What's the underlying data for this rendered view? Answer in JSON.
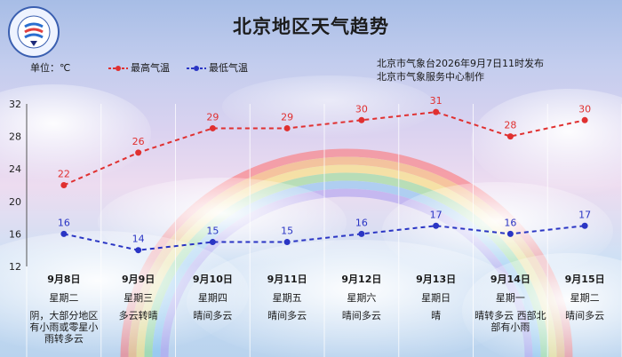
{
  "title": "北京地区天气趋势",
  "unit_label": "单位：℃",
  "legend": {
    "high": "最高气温",
    "low": "最低气温"
  },
  "source_lines": [
    "北京市气象台2026年9月7日11时发布",
    "北京市气象服务中心制作"
  ],
  "colors": {
    "high": "#e03030",
    "low": "#2a35c4"
  },
  "logo_icon": "beijing-meteorological-logo",
  "chart_data": {
    "type": "line",
    "title": "北京地区天气趋势",
    "ylim": [
      12,
      32
    ],
    "yticks": [
      12,
      16,
      20,
      24,
      28,
      32
    ],
    "grid": true,
    "categories": [
      "9月8日",
      "9月9日",
      "9月10日",
      "9月11日",
      "9月12日",
      "9月13日",
      "9月14日",
      "9月15日"
    ],
    "series": [
      {
        "name": "最高气温",
        "values": [
          22,
          26,
          29,
          29,
          30,
          31,
          28,
          30
        ]
      },
      {
        "name": "最低气温",
        "values": [
          16,
          14,
          15,
          15,
          16,
          17,
          16,
          17
        ]
      }
    ]
  },
  "days": [
    {
      "date": "9月8日",
      "weekday": "星期二",
      "weather": "阴，大部分地区有小雨或零星小雨转多云"
    },
    {
      "date": "9月9日",
      "weekday": "星期三",
      "weather": "多云转晴"
    },
    {
      "date": "9月10日",
      "weekday": "星期四",
      "weather": "晴间多云"
    },
    {
      "date": "9月11日",
      "weekday": "星期五",
      "weather": "晴间多云"
    },
    {
      "date": "9月12日",
      "weekday": "星期六",
      "weather": "晴间多云"
    },
    {
      "date": "9月13日",
      "weekday": "星期日",
      "weather": "晴"
    },
    {
      "date": "9月14日",
      "weekday": "星期一",
      "weather": "晴转多云 西部北部有小雨"
    },
    {
      "date": "9月15日",
      "weekday": "星期二",
      "weather": "晴间多云"
    }
  ]
}
